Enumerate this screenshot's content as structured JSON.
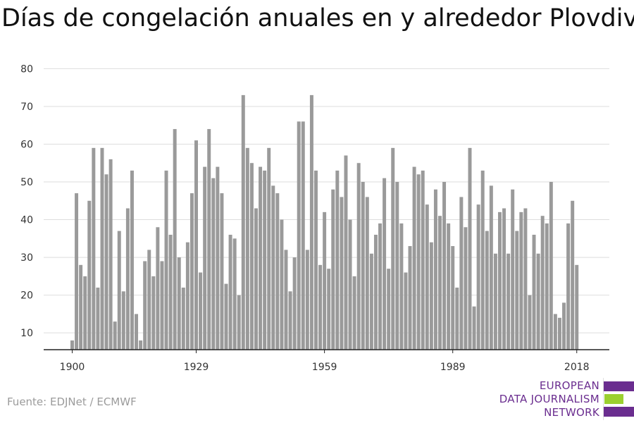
{
  "title": "Días de congelación anuales en y alrededor Plovdiv",
  "source": "Fuente: EDJNet / ECMWF",
  "brand": {
    "line1": "EUROPEAN",
    "line2": "DATA JOURNALISM",
    "line3": "NETWORK",
    "purple": "#6a2d8f",
    "green": "#9bd02f"
  },
  "chart_data": {
    "type": "bar",
    "bar_color": "#9a9a9a",
    "grid": true,
    "x_start": 1900,
    "x_end": 2018,
    "x_ticks": [
      1900,
      1929,
      1959,
      1989,
      2018
    ],
    "y_ticks": [
      10,
      20,
      30,
      40,
      50,
      60,
      70,
      80
    ],
    "ylim": [
      7,
      80
    ],
    "categories": [
      1900,
      1901,
      1902,
      1903,
      1904,
      1905,
      1906,
      1907,
      1908,
      1909,
      1910,
      1911,
      1912,
      1913,
      1914,
      1915,
      1916,
      1917,
      1918,
      1919,
      1920,
      1921,
      1922,
      1923,
      1924,
      1925,
      1926,
      1927,
      1928,
      1929,
      1930,
      1931,
      1932,
      1933,
      1934,
      1935,
      1936,
      1937,
      1938,
      1939,
      1940,
      1941,
      1942,
      1943,
      1944,
      1945,
      1946,
      1947,
      1948,
      1949,
      1950,
      1951,
      1952,
      1953,
      1954,
      1955,
      1956,
      1957,
      1958,
      1959,
      1960,
      1961,
      1962,
      1963,
      1964,
      1965,
      1966,
      1967,
      1968,
      1969,
      1970,
      1971,
      1972,
      1973,
      1974,
      1975,
      1976,
      1977,
      1978,
      1979,
      1980,
      1981,
      1982,
      1983,
      1984,
      1985,
      1986,
      1987,
      1988,
      1989,
      1990,
      1991,
      1992,
      1993,
      1994,
      1995,
      1996,
      1997,
      1998,
      1999,
      2000,
      2001,
      2002,
      2003,
      2004,
      2005,
      2006,
      2007,
      2008,
      2009,
      2010,
      2011,
      2012,
      2013,
      2014,
      2015,
      2016,
      2017,
      2018
    ],
    "values": [
      8,
      47,
      28,
      25,
      45,
      59,
      22,
      59,
      52,
      56,
      13,
      37,
      21,
      43,
      53,
      15,
      8,
      29,
      32,
      25,
      38,
      29,
      53,
      36,
      64,
      30,
      22,
      34,
      47,
      61,
      26,
      54,
      64,
      51,
      54,
      47,
      23,
      36,
      35,
      20,
      73,
      59,
      55,
      43,
      54,
      53,
      59,
      49,
      47,
      40,
      32,
      21,
      30,
      66,
      66,
      32,
      73,
      53,
      28,
      42,
      27,
      48,
      53,
      46,
      57,
      40,
      25,
      55,
      50,
      46,
      31,
      36,
      39,
      51,
      27,
      59,
      50,
      39,
      26,
      33,
      54,
      52,
      53,
      44,
      34,
      48,
      41,
      50,
      39,
      33,
      22,
      46,
      38,
      59,
      17,
      44,
      53,
      37,
      49,
      31,
      42,
      43,
      31,
      48,
      37,
      42,
      43,
      20,
      36,
      31,
      41,
      39,
      50,
      15,
      14,
      18,
      39,
      45,
      28
    ]
  }
}
